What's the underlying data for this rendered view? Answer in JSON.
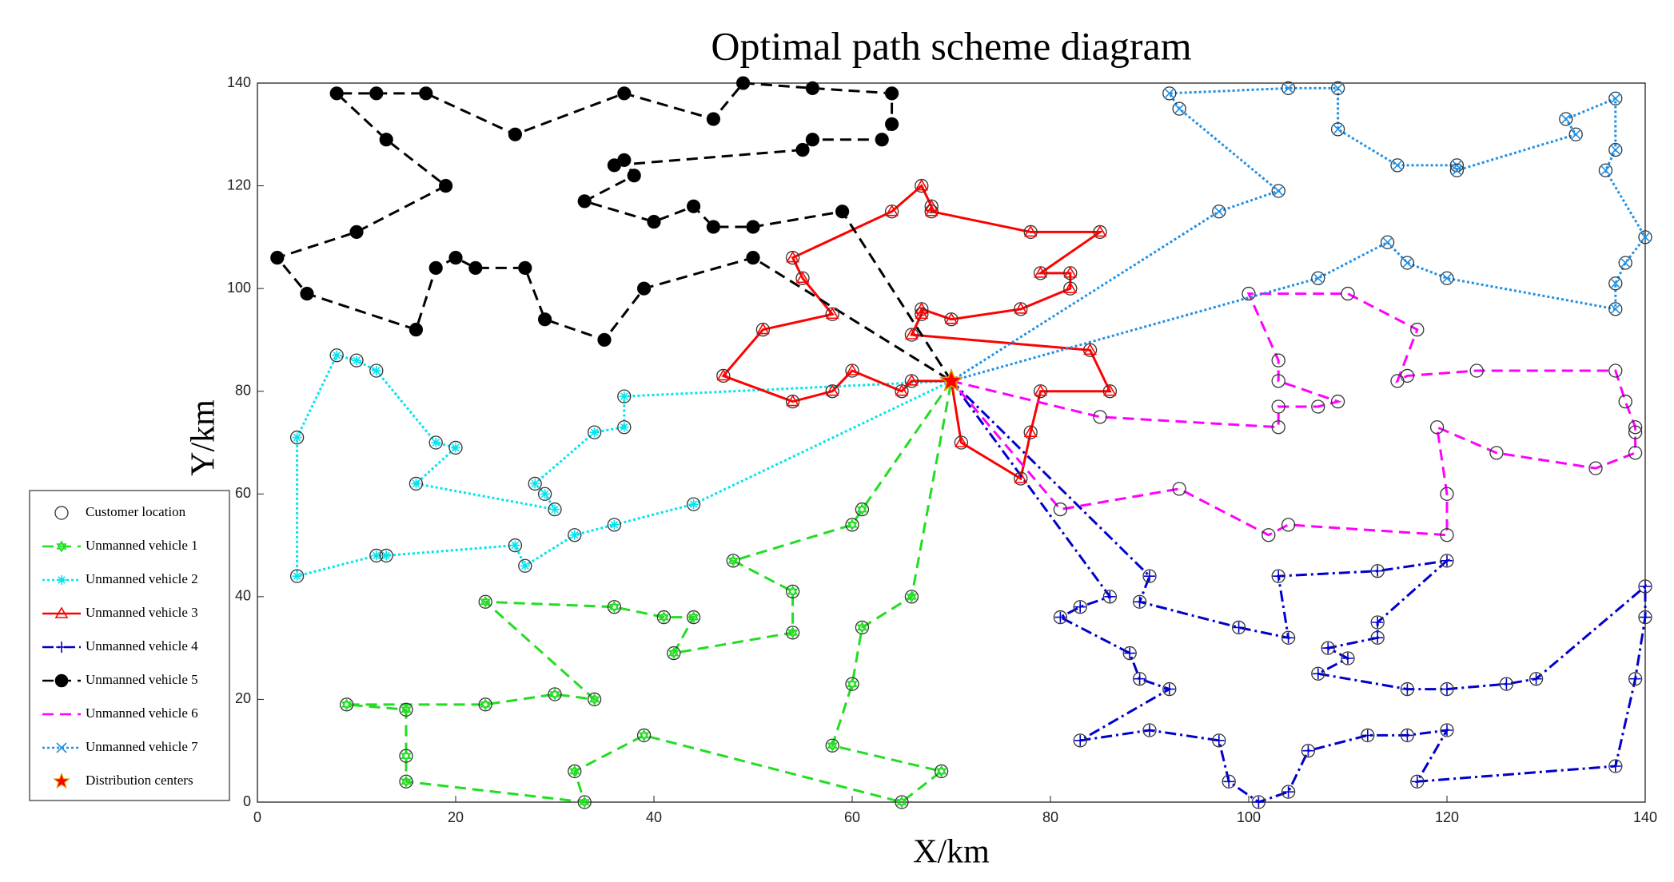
{
  "chart_data": {
    "type": "route",
    "title": "Optimal path scheme diagram",
    "x_label": "X/km",
    "y_label": "Y/km",
    "xlim": [
      0,
      140
    ],
    "ylim": [
      0,
      140
    ],
    "xticks": [
      0,
      20,
      40,
      60,
      80,
      100,
      120,
      140
    ],
    "yticks": [
      0,
      20,
      40,
      60,
      80,
      100,
      120,
      140
    ],
    "customer_label": "Customer location",
    "depot": {
      "name": "Distribution centers",
      "x": 70,
      "y": 82,
      "color": "#ff0000"
    },
    "series": [
      {
        "name": "Unmanned vehicle 1",
        "color": "#22dd22",
        "line_style": "dashed",
        "marker": "hexagram",
        "x": [
          70,
          61,
          60,
          48,
          54,
          54,
          42,
          44,
          41,
          36,
          23,
          34,
          30,
          23,
          9,
          15,
          15,
          15,
          33,
          32,
          39,
          65,
          69,
          58,
          60,
          61,
          66,
          70
        ],
        "y": [
          82,
          57,
          54,
          47,
          41,
          33,
          29,
          36,
          36,
          38,
          39,
          20,
          21,
          19,
          19,
          18,
          9,
          4,
          0,
          6,
          13,
          0,
          6,
          11,
          23,
          34,
          40,
          82
        ]
      },
      {
        "name": "Unmanned vehicle 2",
        "color": "#00e5ee",
        "line_style": "dotted",
        "marker": "asterisk",
        "x": [
          70,
          37,
          37,
          34,
          28,
          29,
          30,
          16,
          20,
          18,
          12,
          10,
          8,
          4,
          4,
          12,
          13,
          26,
          27,
          32,
          36,
          44,
          70
        ],
        "y": [
          82,
          79,
          73,
          72,
          62,
          60,
          57,
          62,
          69,
          70,
          84,
          86,
          87,
          71,
          44,
          48,
          48,
          50,
          46,
          52,
          54,
          58,
          82
        ]
      },
      {
        "name": "Unmanned vehicle 3",
        "color": "#ff0000",
        "line_style": "solid",
        "marker": "triangle",
        "x": [
          70,
          66,
          65,
          60,
          58,
          54,
          47,
          51,
          58,
          55,
          54,
          64,
          67,
          68,
          68,
          78,
          85,
          79,
          82,
          82,
          77,
          70,
          67,
          67,
          66,
          84,
          86,
          79,
          78,
          77,
          71,
          70
        ],
        "y": [
          82,
          82,
          80,
          84,
          80,
          78,
          83,
          92,
          95,
          102,
          106,
          115,
          120,
          116,
          115,
          111,
          111,
          103,
          103,
          100,
          96,
          94,
          96,
          95,
          91,
          88,
          80,
          80,
          72,
          63,
          70,
          82
        ]
      },
      {
        "name": "Unmanned vehicle 4",
        "color": "#0000cc",
        "line_style": "dashdot",
        "marker": "plus",
        "x": [
          70,
          86,
          83,
          81,
          88,
          89,
          92,
          83,
          90,
          97,
          98,
          101,
          104,
          106,
          112,
          116,
          120,
          117,
          137,
          139,
          140,
          140,
          129,
          126,
          120,
          116,
          107,
          110,
          108,
          113,
          113,
          120,
          113,
          103,
          104,
          99,
          89,
          90,
          70
        ],
        "y": [
          82,
          40,
          38,
          36,
          29,
          24,
          22,
          12,
          14,
          12,
          4,
          0,
          2,
          10,
          13,
          13,
          14,
          4,
          7,
          24,
          36,
          42,
          24,
          23,
          22,
          22,
          25,
          28,
          30,
          32,
          35,
          47,
          45,
          44,
          32,
          34,
          39,
          44,
          82
        ]
      },
      {
        "name": "Unmanned vehicle 5",
        "color": "#000000",
        "line_style": "dashed",
        "marker": "dot",
        "x": [
          70,
          59,
          50,
          46,
          44,
          40,
          33,
          38,
          37,
          36,
          55,
          56,
          63,
          64,
          64,
          56,
          49,
          46,
          37,
          26,
          17,
          12,
          8,
          13,
          19,
          10,
          2,
          5,
          16,
          18,
          20,
          22,
          27,
          29,
          35,
          39,
          50,
          70
        ],
        "y": [
          82,
          115,
          112,
          112,
          116,
          113,
          117,
          122,
          125,
          124,
          127,
          129,
          129,
          132,
          138,
          139,
          140,
          133,
          138,
          130,
          138,
          138,
          138,
          129,
          120,
          111,
          106,
          99,
          92,
          104,
          106,
          104,
          104,
          94,
          90,
          100,
          106,
          82
        ]
      },
      {
        "name": "Unmanned vehicle 6",
        "color": "#ff00ff",
        "line_style": "dashed",
        "marker": "none",
        "x": [
          70,
          85,
          103,
          103,
          107,
          109,
          103,
          103,
          100,
          110,
          117,
          115,
          116,
          123,
          137,
          138,
          139,
          139,
          139,
          135,
          125,
          119,
          120,
          120,
          104,
          102,
          93,
          81,
          70
        ],
        "y": [
          82,
          75,
          73,
          77,
          77,
          78,
          82,
          86,
          99,
          99,
          92,
          82,
          83,
          84,
          84,
          78,
          73,
          72,
          68,
          65,
          68,
          73,
          60,
          52,
          54,
          52,
          61,
          57,
          82
        ]
      },
      {
        "name": "Unmanned vehicle 7",
        "color": "#1e90e6",
        "line_style": "dotted",
        "marker": "x",
        "x": [
          70,
          97,
          103,
          93,
          92,
          104,
          109,
          109,
          115,
          121,
          121,
          133,
          132,
          137,
          137,
          136,
          140,
          138,
          137,
          137,
          120,
          116,
          114,
          107,
          70
        ],
        "y": [
          82,
          115,
          119,
          135,
          138,
          139,
          139,
          131,
          124,
          124,
          123,
          130,
          133,
          137,
          127,
          123,
          110,
          105,
          101,
          96,
          102,
          105,
          109,
          102,
          82
        ]
      }
    ]
  }
}
